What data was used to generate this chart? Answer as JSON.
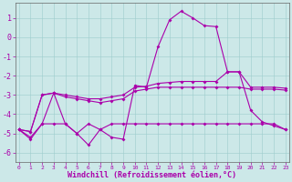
{
  "xlabel": "Windchill (Refroidissement éolien,°C)",
  "background_color": "#cce8e8",
  "grid_color": "#9dcccc",
  "line_color": "#aa00aa",
  "x_values": [
    0,
    1,
    2,
    3,
    4,
    5,
    6,
    7,
    8,
    9,
    10,
    11,
    12,
    13,
    14,
    15,
    16,
    17,
    18,
    19,
    20,
    21,
    22,
    23
  ],
  "line1_y": [
    -4.8,
    -5.3,
    -4.5,
    -2.9,
    -4.5,
    -5.0,
    -5.6,
    -4.8,
    -5.2,
    -5.3,
    -2.5,
    -2.6,
    -0.5,
    0.9,
    1.35,
    1.0,
    0.6,
    0.55,
    -1.8,
    -1.8,
    -3.8,
    -4.4,
    -4.6,
    -4.8
  ],
  "line2_y": [
    -4.8,
    -4.9,
    -3.0,
    -2.9,
    -3.0,
    -3.1,
    -3.2,
    -3.2,
    -3.1,
    -3.0,
    -2.6,
    -2.55,
    -2.4,
    -2.35,
    -2.3,
    -2.3,
    -2.3,
    -2.3,
    -1.8,
    -1.8,
    -2.6,
    -2.6,
    -2.6,
    -2.65
  ],
  "line3_y": [
    -4.8,
    -4.9,
    -3.0,
    -2.9,
    -3.1,
    -3.2,
    -3.3,
    -3.4,
    -3.3,
    -3.2,
    -2.8,
    -2.7,
    -2.6,
    -2.6,
    -2.6,
    -2.6,
    -2.6,
    -2.6,
    -2.6,
    -2.6,
    -2.7,
    -2.7,
    -2.7,
    -2.75
  ],
  "line4_y": [
    -4.8,
    -5.2,
    -4.5,
    -4.5,
    -4.5,
    -5.0,
    -4.5,
    -4.8,
    -4.5,
    -4.5,
    -4.5,
    -4.5,
    -4.5,
    -4.5,
    -4.5,
    -4.5,
    -4.5,
    -4.5,
    -4.5,
    -4.5,
    -4.5,
    -4.5,
    -4.5,
    -4.8
  ],
  "ylim": [
    -6.5,
    1.8
  ],
  "yticks": [
    -6,
    -5,
    -4,
    -3,
    -2,
    -1,
    0,
    1
  ],
  "figsize": [
    3.2,
    2.0
  ],
  "dpi": 100
}
